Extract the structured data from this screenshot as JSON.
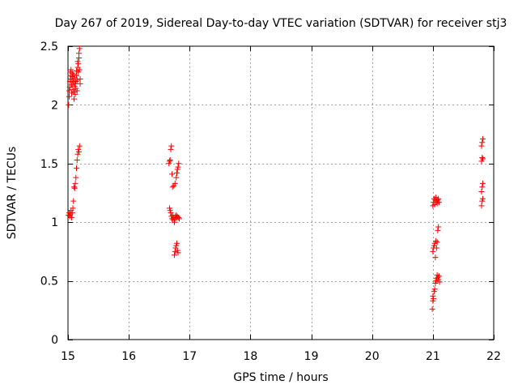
{
  "chart_data": {
    "type": "scatter",
    "title": "Day 267 of 2019, Sidereal Day-to-day VTEC variation (SDTVAR) for receiver stj3",
    "xlabel": "GPS time / hours",
    "ylabel": "SDTVAR / TECUs",
    "xlim": [
      15,
      22
    ],
    "ylim": [
      0,
      2.5
    ],
    "grid": true,
    "marker": "+",
    "color": "#ff0000",
    "x_ticks": [
      15,
      16,
      17,
      18,
      19,
      20,
      21,
      22
    ],
    "x_tick_labels": [
      "15",
      "16",
      "17",
      "18",
      "19",
      "20",
      "21",
      "22"
    ],
    "y_ticks": [
      0,
      0.5,
      1,
      1.5,
      2,
      2.5
    ],
    "y_tick_labels": [
      "0",
      "0.5",
      "1",
      "1.5",
      "2",
      "2.5"
    ],
    "series": [
      {
        "name": "SDTVAR",
        "points": [
          [
            15.01,
            2.0
          ],
          [
            15.02,
            2.07
          ],
          [
            15.02,
            2.12
          ],
          [
            15.03,
            2.15
          ],
          [
            15.03,
            2.2
          ],
          [
            15.04,
            2.25
          ],
          [
            15.04,
            2.28
          ],
          [
            15.05,
            2.3
          ],
          [
            15.05,
            2.22
          ],
          [
            15.06,
            2.1
          ],
          [
            15.06,
            2.17
          ],
          [
            15.07,
            2.24
          ],
          [
            15.07,
            2.27
          ],
          [
            15.08,
            2.13
          ],
          [
            15.08,
            2.19
          ],
          [
            15.09,
            2.21
          ],
          [
            15.09,
            2.26
          ],
          [
            15.1,
            2.05
          ],
          [
            15.1,
            2.11
          ],
          [
            15.11,
            2.16
          ],
          [
            15.11,
            2.23
          ],
          [
            15.12,
            2.18
          ],
          [
            15.12,
            2.09
          ],
          [
            15.13,
            2.14
          ],
          [
            15.13,
            2.2
          ],
          [
            15.14,
            2.25
          ],
          [
            15.14,
            2.29
          ],
          [
            15.15,
            2.21
          ],
          [
            15.15,
            2.12
          ],
          [
            15.16,
            2.32
          ],
          [
            15.16,
            2.37
          ],
          [
            15.17,
            2.35
          ],
          [
            15.17,
            2.28
          ],
          [
            15.18,
            2.4
          ],
          [
            15.18,
            2.44
          ],
          [
            15.19,
            2.48
          ],
          [
            15.19,
            2.3
          ],
          [
            15.2,
            2.22
          ],
          [
            15.2,
            2.18
          ],
          [
            15.01,
            1.06
          ],
          [
            15.02,
            1.08
          ],
          [
            15.03,
            1.05
          ],
          [
            15.04,
            1.07
          ],
          [
            15.05,
            1.1
          ],
          [
            15.06,
            1.04
          ],
          [
            15.07,
            1.08
          ],
          [
            15.08,
            1.12
          ],
          [
            15.09,
            1.18
          ],
          [
            15.1,
            1.3
          ],
          [
            15.11,
            1.29
          ],
          [
            15.12,
            1.33
          ],
          [
            15.13,
            1.38
          ],
          [
            15.14,
            1.46
          ],
          [
            15.15,
            1.53
          ],
          [
            15.16,
            1.58
          ],
          [
            15.17,
            1.62
          ],
          [
            15.18,
            1.6
          ],
          [
            15.19,
            1.65
          ],
          [
            16.67,
            1.12
          ],
          [
            16.68,
            1.1
          ],
          [
            16.69,
            1.08
          ],
          [
            16.7,
            1.05
          ],
          [
            16.71,
            1.03
          ],
          [
            16.72,
            1.06
          ],
          [
            16.73,
            1.02
          ],
          [
            16.74,
            1.04
          ],
          [
            16.75,
            1.0
          ],
          [
            16.76,
            1.03
          ],
          [
            16.77,
            1.05
          ],
          [
            16.78,
            1.06
          ],
          [
            16.79,
            1.04
          ],
          [
            16.8,
            1.05
          ],
          [
            16.82,
            1.04
          ],
          [
            16.83,
            1.03
          ],
          [
            16.66,
            1.5
          ],
          [
            16.67,
            1.52
          ],
          [
            16.68,
            1.53
          ],
          [
            16.69,
            1.62
          ],
          [
            16.7,
            1.65
          ],
          [
            16.71,
            1.41
          ],
          [
            16.72,
            1.3
          ],
          [
            16.74,
            1.31
          ],
          [
            16.76,
            1.33
          ],
          [
            16.78,
            1.38
          ],
          [
            16.79,
            1.42
          ],
          [
            16.8,
            1.45
          ],
          [
            16.81,
            1.47
          ],
          [
            16.82,
            1.5
          ],
          [
            16.75,
            0.72
          ],
          [
            16.76,
            0.75
          ],
          [
            16.77,
            0.78
          ],
          [
            16.78,
            0.8
          ],
          [
            16.79,
            0.82
          ],
          [
            16.8,
            0.76
          ],
          [
            16.81,
            0.74
          ],
          [
            20.99,
            0.26
          ],
          [
            21.0,
            0.33
          ],
          [
            21.0,
            0.37
          ],
          [
            21.01,
            0.35
          ],
          [
            21.02,
            0.41
          ],
          [
            21.03,
            0.43
          ],
          [
            21.04,
            0.48
          ],
          [
            21.05,
            0.5
          ],
          [
            21.06,
            0.52
          ],
          [
            21.07,
            0.55
          ],
          [
            21.08,
            0.53
          ],
          [
            21.09,
            0.51
          ],
          [
            21.1,
            0.54
          ],
          [
            21.11,
            0.49
          ],
          [
            21.0,
            0.75
          ],
          [
            21.01,
            0.78
          ],
          [
            21.02,
            0.8
          ],
          [
            21.03,
            0.82
          ],
          [
            21.04,
            0.7
          ],
          [
            21.05,
            0.84
          ],
          [
            21.06,
            0.78
          ],
          [
            21.07,
            0.83
          ],
          [
            21.08,
            0.93
          ],
          [
            21.09,
            0.96
          ],
          [
            21.0,
            1.14
          ],
          [
            21.01,
            1.17
          ],
          [
            21.02,
            1.2
          ],
          [
            21.03,
            1.15
          ],
          [
            21.04,
            1.19
          ],
          [
            21.05,
            1.21
          ],
          [
            21.06,
            1.18
          ],
          [
            21.07,
            1.16
          ],
          [
            21.08,
            1.19
          ],
          [
            21.09,
            1.2
          ],
          [
            21.1,
            1.17
          ],
          [
            21.8,
            1.14
          ],
          [
            21.81,
            1.18
          ],
          [
            21.82,
            1.2
          ],
          [
            21.8,
            1.26
          ],
          [
            21.81,
            1.3
          ],
          [
            21.82,
            1.33
          ],
          [
            21.8,
            1.52
          ],
          [
            21.81,
            1.55
          ],
          [
            21.82,
            1.54
          ],
          [
            21.8,
            1.65
          ],
          [
            21.81,
            1.68
          ],
          [
            21.82,
            1.71
          ]
        ]
      }
    ]
  }
}
